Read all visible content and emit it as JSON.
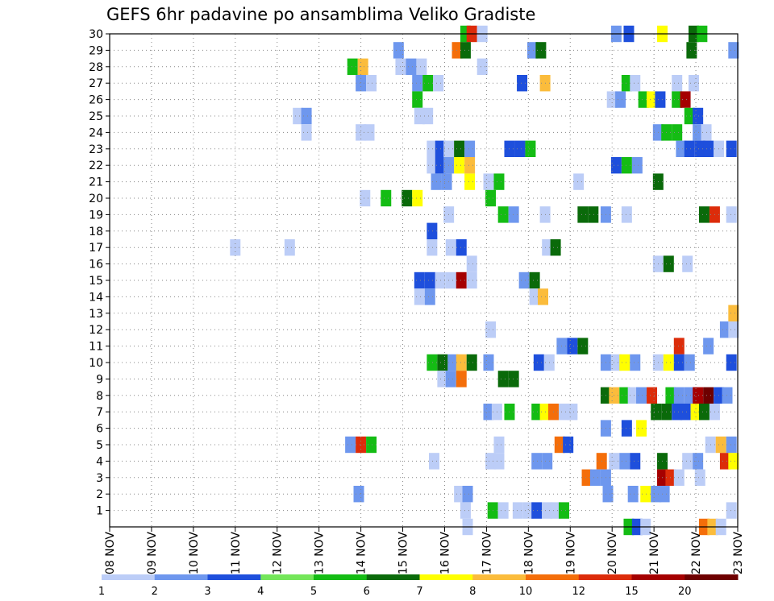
{
  "chart_data": {
    "type": "heatmap",
    "title": "GEFS 6hr padavine po ansamblima Veliko Gradiste",
    "x_tick_labels": [
      "08 NOV",
      "09 NOV",
      "10 NOV",
      "11 NOV",
      "12 NOV",
      "13 NOV",
      "14 NOV",
      "15 NOV",
      "16 NOV",
      "17 NOV",
      "18 NOV",
      "19 NOV",
      "20 NOV",
      "21 NOV",
      "22 NOV",
      "23 NOV"
    ],
    "y_tick_labels": [
      "1",
      "2",
      "3",
      "4",
      "5",
      "6",
      "7",
      "8",
      "9",
      "10",
      "11",
      "12",
      "13",
      "14",
      "15",
      "16",
      "17",
      "18",
      "19",
      "20",
      "21",
      "22",
      "23",
      "24",
      "25",
      "26",
      "27",
      "28",
      "29",
      "30"
    ],
    "xlim_days": [
      0,
      15
    ],
    "ylim": [
      0,
      30
    ],
    "grid": "dotted",
    "colorbar": {
      "labels": [
        "1",
        "2",
        "3",
        "4",
        "5",
        "6",
        "7",
        "8",
        "10",
        "12",
        "15",
        "20"
      ],
      "colors": [
        "#bccdf7",
        "#6e97ee",
        "#1e4fdc",
        "#74e65a",
        "#14bc14",
        "#0a6a0a",
        "#ffff00",
        "#fbbc3c",
        "#f46e0a",
        "#dc2c0a",
        "#a50000",
        "#6e0000"
      ]
    },
    "cells": [
      [
        8.5,
        30,
        5
      ],
      [
        8.65,
        30,
        10
      ],
      [
        8.9,
        30,
        1
      ],
      [
        12.1,
        30,
        2
      ],
      [
        12.4,
        30,
        3
      ],
      [
        13.2,
        30,
        7
      ],
      [
        13.95,
        30,
        6
      ],
      [
        14.15,
        30,
        5
      ],
      [
        6.9,
        29,
        2
      ],
      [
        8.3,
        29,
        9
      ],
      [
        8.5,
        29,
        6
      ],
      [
        10.1,
        29,
        2
      ],
      [
        10.3,
        29,
        6
      ],
      [
        13.9,
        29,
        6
      ],
      [
        14.9,
        29,
        2
      ],
      [
        5.8,
        28,
        5
      ],
      [
        6.05,
        28,
        8
      ],
      [
        6.95,
        28,
        1
      ],
      [
        7.2,
        28,
        2
      ],
      [
        7.45,
        28,
        1
      ],
      [
        8.9,
        28,
        1
      ],
      [
        6.0,
        27,
        2
      ],
      [
        6.25,
        27,
        1
      ],
      [
        7.35,
        27,
        2
      ],
      [
        7.6,
        27,
        5
      ],
      [
        7.85,
        27,
        1
      ],
      [
        9.85,
        27,
        3
      ],
      [
        10.4,
        27,
        8
      ],
      [
        12.35,
        27,
        5
      ],
      [
        12.55,
        27,
        1
      ],
      [
        13.55,
        27,
        1
      ],
      [
        13.95,
        27,
        1
      ],
      [
        7.35,
        26,
        5
      ],
      [
        12.0,
        26,
        1
      ],
      [
        12.2,
        26,
        2
      ],
      [
        12.75,
        26,
        5
      ],
      [
        12.95,
        26,
        7
      ],
      [
        13.15,
        26,
        3
      ],
      [
        13.55,
        26,
        5
      ],
      [
        13.75,
        26,
        11
      ],
      [
        4.5,
        25,
        1
      ],
      [
        4.7,
        25,
        2
      ],
      [
        7.4,
        25,
        1
      ],
      [
        7.6,
        25,
        1
      ],
      [
        13.85,
        25,
        5
      ],
      [
        14.05,
        25,
        3
      ],
      [
        4.7,
        24,
        1
      ],
      [
        6.0,
        24,
        1
      ],
      [
        6.2,
        24,
        1
      ],
      [
        13.1,
        24,
        2
      ],
      [
        13.3,
        24,
        5
      ],
      [
        13.55,
        24,
        5
      ],
      [
        14.05,
        24,
        2
      ],
      [
        14.25,
        24,
        1
      ],
      [
        7.7,
        23,
        1
      ],
      [
        7.9,
        23,
        3
      ],
      [
        8.1,
        23,
        1
      ],
      [
        8.35,
        23,
        6
      ],
      [
        8.6,
        23,
        2
      ],
      [
        9.55,
        23,
        3
      ],
      [
        9.8,
        23,
        3
      ],
      [
        10.05,
        23,
        5
      ],
      [
        13.65,
        23,
        2
      ],
      [
        13.85,
        23,
        3
      ],
      [
        14.1,
        23,
        3
      ],
      [
        14.3,
        23,
        3
      ],
      [
        14.55,
        23,
        1
      ],
      [
        14.85,
        23,
        3
      ],
      [
        7.7,
        22,
        1
      ],
      [
        7.9,
        22,
        3
      ],
      [
        8.1,
        22,
        2
      ],
      [
        8.35,
        22,
        7
      ],
      [
        8.6,
        22,
        8
      ],
      [
        12.1,
        22,
        3
      ],
      [
        12.35,
        22,
        5
      ],
      [
        12.6,
        22,
        2
      ],
      [
        7.8,
        21,
        2
      ],
      [
        8.05,
        21,
        2
      ],
      [
        8.6,
        21,
        7
      ],
      [
        9.05,
        21,
        1
      ],
      [
        9.3,
        21,
        5
      ],
      [
        11.2,
        21,
        1
      ],
      [
        13.1,
        21,
        6
      ],
      [
        6.1,
        20,
        1
      ],
      [
        6.6,
        20,
        5
      ],
      [
        7.1,
        20,
        6
      ],
      [
        7.35,
        20,
        7
      ],
      [
        9.1,
        20,
        5
      ],
      [
        8.1,
        19,
        1
      ],
      [
        9.4,
        19,
        5
      ],
      [
        9.65,
        19,
        2
      ],
      [
        10.4,
        19,
        1
      ],
      [
        11.3,
        19,
        6
      ],
      [
        11.55,
        19,
        6
      ],
      [
        11.85,
        19,
        2
      ],
      [
        12.35,
        19,
        1
      ],
      [
        14.2,
        19,
        6
      ],
      [
        14.45,
        19,
        10
      ],
      [
        14.85,
        19,
        1
      ],
      [
        7.7,
        18,
        3
      ],
      [
        3.0,
        17,
        1
      ],
      [
        4.3,
        17,
        1
      ],
      [
        7.7,
        17,
        1
      ],
      [
        8.15,
        17,
        1
      ],
      [
        8.4,
        17,
        3
      ],
      [
        10.45,
        17,
        1
      ],
      [
        10.65,
        17,
        6
      ],
      [
        8.65,
        16,
        1
      ],
      [
        13.1,
        16,
        1
      ],
      [
        13.35,
        16,
        6
      ],
      [
        13.8,
        16,
        1
      ],
      [
        7.4,
        15,
        3
      ],
      [
        7.65,
        15,
        3
      ],
      [
        7.9,
        15,
        1
      ],
      [
        8.15,
        15,
        1
      ],
      [
        8.4,
        15,
        11
      ],
      [
        8.65,
        15,
        1
      ],
      [
        9.9,
        15,
        2
      ],
      [
        10.15,
        15,
        6
      ],
      [
        7.4,
        14,
        1
      ],
      [
        7.65,
        14,
        2
      ],
      [
        10.15,
        14,
        1
      ],
      [
        10.35,
        14,
        8
      ],
      [
        14.9,
        13,
        8
      ],
      [
        9.1,
        12,
        1
      ],
      [
        14.7,
        12,
        2
      ],
      [
        14.9,
        12,
        1
      ],
      [
        10.8,
        11,
        2
      ],
      [
        11.05,
        11,
        3
      ],
      [
        11.3,
        11,
        6
      ],
      [
        13.6,
        11,
        10
      ],
      [
        14.3,
        11,
        2
      ],
      [
        7.7,
        10,
        5
      ],
      [
        7.95,
        10,
        6
      ],
      [
        8.2,
        10,
        2
      ],
      [
        8.4,
        10,
        8
      ],
      [
        8.65,
        10,
        6
      ],
      [
        9.05,
        10,
        2
      ],
      [
        10.25,
        10,
        3
      ],
      [
        10.5,
        10,
        1
      ],
      [
        11.85,
        10,
        2
      ],
      [
        12.1,
        10,
        1
      ],
      [
        12.3,
        10,
        7
      ],
      [
        12.55,
        10,
        2
      ],
      [
        13.1,
        10,
        1
      ],
      [
        13.35,
        10,
        7
      ],
      [
        13.6,
        10,
        3
      ],
      [
        13.85,
        10,
        2
      ],
      [
        14.85,
        10,
        3
      ],
      [
        7.95,
        9,
        1
      ],
      [
        8.15,
        9,
        2
      ],
      [
        8.4,
        9,
        9
      ],
      [
        9.4,
        9,
        6
      ],
      [
        9.65,
        9,
        6
      ],
      [
        11.85,
        8,
        6
      ],
      [
        12.05,
        8,
        8
      ],
      [
        12.3,
        8,
        5
      ],
      [
        12.5,
        8,
        1
      ],
      [
        12.7,
        8,
        2
      ],
      [
        12.95,
        8,
        10
      ],
      [
        13.4,
        8,
        5
      ],
      [
        13.6,
        8,
        2
      ],
      [
        13.85,
        8,
        2
      ],
      [
        14.05,
        8,
        11
      ],
      [
        14.3,
        8,
        12
      ],
      [
        14.55,
        8,
        3
      ],
      [
        14.75,
        8,
        2
      ],
      [
        9.05,
        7,
        2
      ],
      [
        9.25,
        7,
        1
      ],
      [
        9.55,
        7,
        5
      ],
      [
        10.2,
        7,
        5
      ],
      [
        10.4,
        7,
        7
      ],
      [
        10.6,
        7,
        9
      ],
      [
        10.85,
        7,
        1
      ],
      [
        11.05,
        7,
        1
      ],
      [
        13.05,
        7,
        6
      ],
      [
        13.3,
        7,
        6
      ],
      [
        13.55,
        7,
        3
      ],
      [
        13.75,
        7,
        3
      ],
      [
        14.0,
        7,
        7
      ],
      [
        14.2,
        7,
        6
      ],
      [
        14.45,
        7,
        1
      ],
      [
        11.85,
        6,
        2
      ],
      [
        12.35,
        6,
        3
      ],
      [
        12.7,
        6,
        7
      ],
      [
        5.75,
        5,
        2
      ],
      [
        6.0,
        5,
        10
      ],
      [
        6.25,
        5,
        5
      ],
      [
        9.3,
        5,
        1
      ],
      [
        10.75,
        5,
        9
      ],
      [
        10.95,
        5,
        3
      ],
      [
        14.35,
        5,
        1
      ],
      [
        14.6,
        5,
        8
      ],
      [
        14.85,
        5,
        2
      ],
      [
        7.75,
        4,
        1
      ],
      [
        9.1,
        4,
        1
      ],
      [
        9.3,
        4,
        1
      ],
      [
        10.2,
        4,
        2
      ],
      [
        10.45,
        4,
        2
      ],
      [
        11.75,
        4,
        9
      ],
      [
        12.05,
        4,
        1
      ],
      [
        12.3,
        4,
        2
      ],
      [
        12.55,
        4,
        3
      ],
      [
        13.2,
        4,
        6
      ],
      [
        13.8,
        4,
        1
      ],
      [
        14.05,
        4,
        2
      ],
      [
        14.7,
        4,
        10
      ],
      [
        14.9,
        4,
        7
      ],
      [
        11.4,
        3,
        9
      ],
      [
        11.6,
        3,
        2
      ],
      [
        11.85,
        3,
        2
      ],
      [
        13.2,
        3,
        11
      ],
      [
        13.4,
        3,
        10
      ],
      [
        13.6,
        3,
        1
      ],
      [
        14.1,
        3,
        1
      ],
      [
        5.95,
        2,
        2
      ],
      [
        8.35,
        2,
        1
      ],
      [
        8.55,
        2,
        2
      ],
      [
        11.9,
        2,
        2
      ],
      [
        12.5,
        2,
        2
      ],
      [
        12.8,
        2,
        7
      ],
      [
        13.05,
        2,
        2
      ],
      [
        13.25,
        2,
        2
      ],
      [
        8.5,
        1,
        1
      ],
      [
        9.15,
        1,
        5
      ],
      [
        9.4,
        1,
        1
      ],
      [
        9.75,
        1,
        1
      ],
      [
        10.0,
        1,
        1
      ],
      [
        10.2,
        1,
        3
      ],
      [
        10.45,
        1,
        1
      ],
      [
        10.65,
        1,
        1
      ],
      [
        10.85,
        1,
        5
      ],
      [
        14.85,
        1,
        1
      ],
      [
        8.55,
        0,
        1
      ],
      [
        12.4,
        0,
        5
      ],
      [
        12.6,
        0,
        3
      ],
      [
        12.8,
        0,
        1
      ],
      [
        14.2,
        0,
        9
      ],
      [
        14.4,
        0,
        8
      ],
      [
        14.6,
        0,
        1
      ]
    ]
  }
}
